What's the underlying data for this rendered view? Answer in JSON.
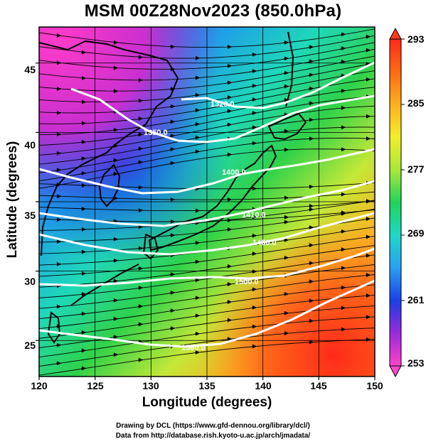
{
  "title": "MSM 00Z28Nov2023 (850.0hPa)",
  "x_axis": {
    "label": "Longitude (degrees)",
    "range": [
      120,
      150
    ],
    "ticks": [
      "120",
      "125",
      "130",
      "135",
      "140",
      "145",
      "150"
    ]
  },
  "y_axis": {
    "label": "Latitude  (degrees)",
    "range": [
      22.4,
      47.6
    ],
    "ticks": [
      "25",
      "30",
      "35",
      "40",
      "45"
    ]
  },
  "colorbar": {
    "range": [
      253,
      293
    ],
    "ticks": [
      "253",
      "261",
      "269",
      "277",
      "285",
      "293"
    ],
    "colors": [
      "#ff44cc",
      "#9a2ad8",
      "#1b3fe6",
      "#2aa0f0",
      "#1fd8c8",
      "#22d45a",
      "#a8e83a",
      "#f3ee2c",
      "#ffb020",
      "#ff6a14",
      "#ff2a1a"
    ]
  },
  "contours": [
    {
      "label": "1320.0"
    },
    {
      "label": "1350.0"
    },
    {
      "label": "1400.0"
    },
    {
      "label": "1410.0"
    },
    {
      "label": "1450.0"
    },
    {
      "label": "1500.0"
    },
    {
      "label": "1560.0"
    }
  ],
  "credits": {
    "line1": "Drawing by DCL (https://www.gfd-dennou.org/library/dcl/)",
    "line2": "Data from http://database.rish.kyoto-u.ac.jp/arch/jmadata/"
  }
}
